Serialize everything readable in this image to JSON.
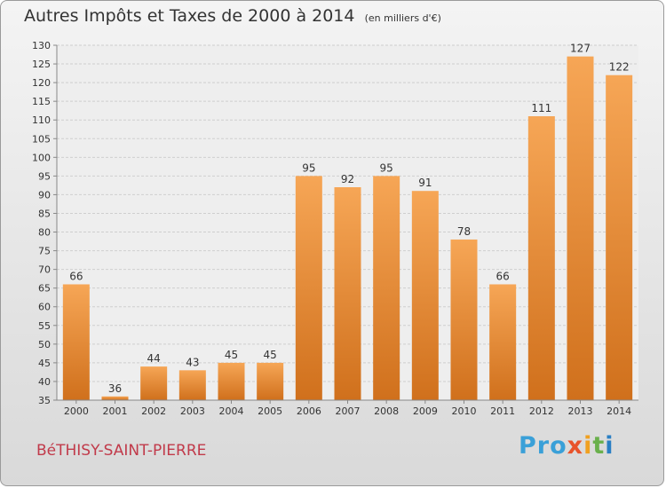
{
  "title": {
    "main": "Autres Impôts et Taxes de 2000 à 2014",
    "sub": "(en milliers d'€)"
  },
  "commune": "BéTHISY-SAINT-PIERRE",
  "logo": {
    "p1": "Pro",
    "p2": "x",
    "p3": "i",
    "p4": "t",
    "p5": "i"
  },
  "colors": {
    "bar_light": "#f6a656",
    "bar_dark": "#d0701c",
    "text": "#333333",
    "commune": "#c13a4a"
  },
  "chart_data": {
    "type": "bar",
    "title": "Autres Impôts et Taxes de 2000 à 2014",
    "subtitle": "(en milliers d'€)",
    "xlabel": "",
    "ylabel": "",
    "categories": [
      "2000",
      "2001",
      "2002",
      "2003",
      "2004",
      "2005",
      "2006",
      "2007",
      "2008",
      "2009",
      "2010",
      "2011",
      "2012",
      "2013",
      "2014"
    ],
    "values": [
      66,
      36,
      44,
      43,
      45,
      45,
      95,
      92,
      95,
      91,
      78,
      66,
      111,
      127,
      122
    ],
    "ylim": [
      35,
      130
    ],
    "yticks": [
      35,
      40,
      45,
      50,
      55,
      60,
      65,
      70,
      75,
      80,
      85,
      90,
      95,
      100,
      105,
      110,
      115,
      120,
      125,
      130
    ],
    "grid": true,
    "legend": "none"
  }
}
